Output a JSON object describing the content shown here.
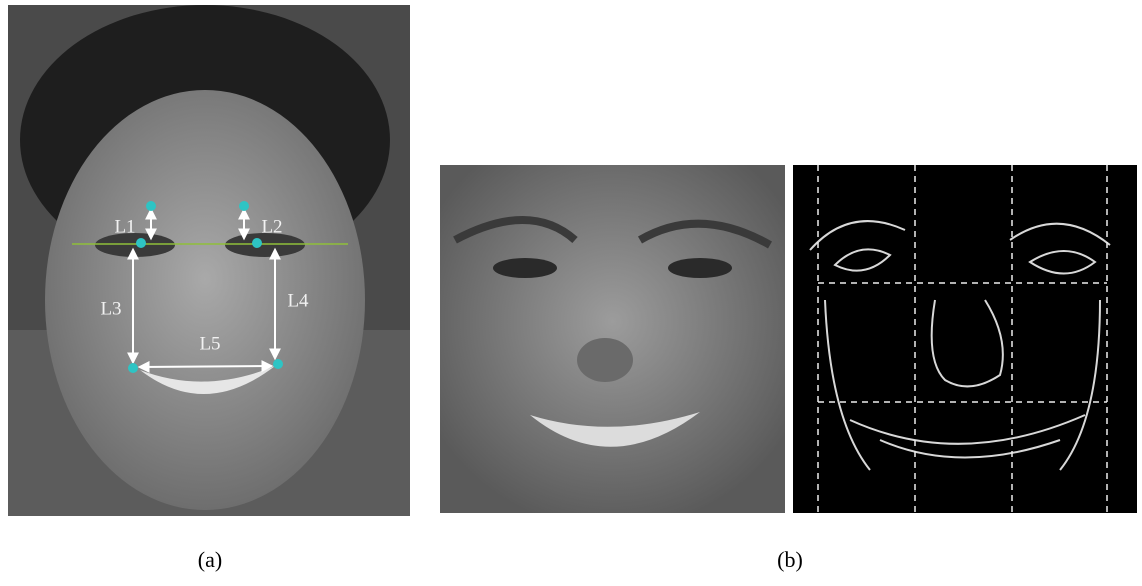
{
  "panels": [
    {
      "caption": "(a)",
      "labels": [
        "L1",
        "L2",
        "L3",
        "L4",
        "L5"
      ]
    },
    {
      "caption": "(b)"
    }
  ]
}
